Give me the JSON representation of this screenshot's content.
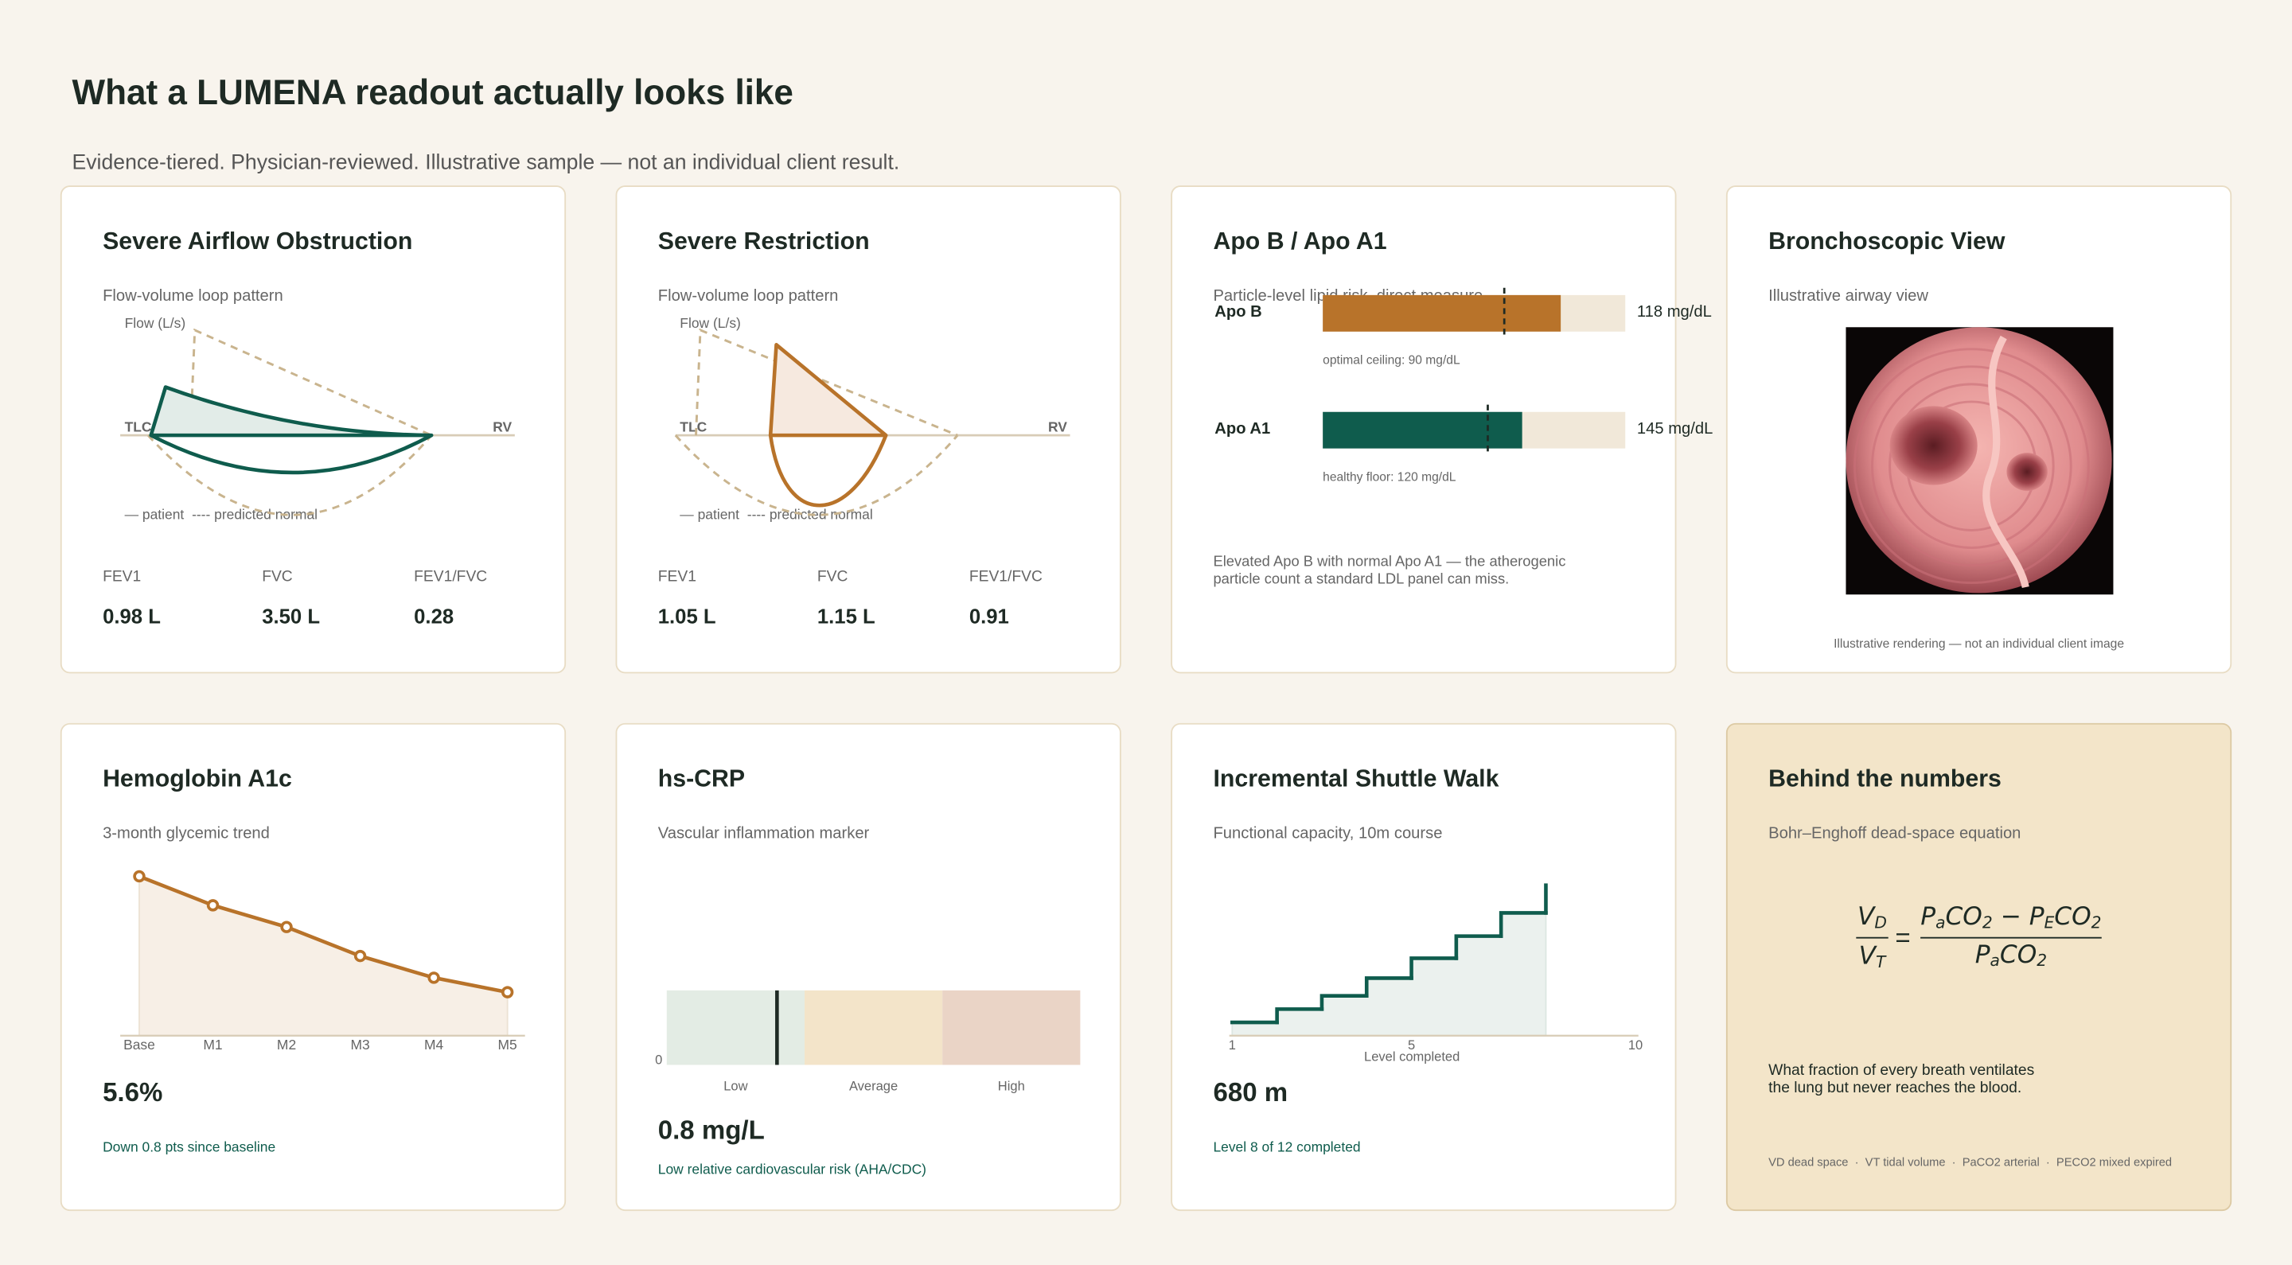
{
  "header": {
    "title": "What a LUMENA readout actually looks like",
    "subtitle": "Evidence-tiered. Physician-reviewed. Illustrative sample — not an individual client result."
  },
  "cards": [
    {
      "title": "Severe Airflow Obstruction",
      "subtitle": "Flow-volume loop pattern",
      "chart": {
        "type": "flow-volume-loop",
        "y_label": "Flow (L/s)",
        "left_label": "TLC",
        "right_label": "RV",
        "legend": [
          "— patient",
          "---- predicted normal"
        ]
      },
      "metrics": [
        {
          "label": "FEV1",
          "value": "0.98 L"
        },
        {
          "label": "FVC",
          "value": "3.50 L"
        },
        {
          "label": "FEV1/FVC",
          "value": "0.28"
        }
      ]
    },
    {
      "title": "Severe Restriction",
      "subtitle": "Flow-volume loop pattern",
      "chart": {
        "type": "flow-volume-loop",
        "y_label": "Flow (L/s)",
        "left_label": "TLC",
        "right_label": "RV",
        "legend": [
          "— patient",
          "---- predicted normal"
        ]
      },
      "metrics": [
        {
          "label": "FEV1",
          "value": "1.05 L"
        },
        {
          "label": "FVC",
          "value": "1.15 L"
        },
        {
          "label": "FEV1/FVC",
          "value": "0.91"
        }
      ]
    },
    {
      "title": "Apo B / Apo A1",
      "subtitle": "Particle-level lipid risk, direct measure",
      "chart": {
        "type": "bullet",
        "series": [
          {
            "name": "Apo B",
            "value": 118,
            "value_label": "118 mg/dL",
            "xlim": [
              0,
              150
            ],
            "ref": 90,
            "ref_label": "optimal ceiling: 90 mg/dL",
            "color": "#b8732a"
          },
          {
            "name": "Apo A1",
            "value": 145,
            "value_label": "145 mg/dL",
            "xlim": [
              0,
              220
            ],
            "ref": 120,
            "ref_label": "healthy floor: 120 mg/dL",
            "color": "#0f5c4d"
          }
        ]
      },
      "note": [
        "Elevated Apo B with normal Apo A1 — the atherogenic",
        "particle count a standard LDL panel can miss."
      ]
    },
    {
      "title": "Bronchoscopic View",
      "subtitle": "Illustrative airway view",
      "caption": "Illustrative rendering — not an individual client image"
    },
    {
      "title": "Hemoglobin A1c",
      "subtitle": "3-month glycemic trend",
      "chart": {
        "type": "line",
        "categories": [
          "Base",
          "M1",
          "M2",
          "M3",
          "M4",
          "M5"
        ],
        "values": [
          6.4,
          6.2,
          6.05,
          5.85,
          5.7,
          5.6
        ],
        "ylim": [
          5.3,
          6.5
        ],
        "color": "#b8732a"
      },
      "headline": "5.6%",
      "note": "Down 0.8 pts since baseline"
    },
    {
      "title": "hs-CRP",
      "subtitle": "Vascular inflammation marker",
      "chart": {
        "type": "band-scale",
        "xlim": [
          0,
          3
        ],
        "xticks": [
          0
        ],
        "value": 0.8,
        "bands": [
          {
            "label": "Low",
            "range": [
              0,
              1
            ],
            "color": "#e3ece4"
          },
          {
            "label": "Average",
            "range": [
              1,
              2
            ],
            "color": "#f3e4c9"
          },
          {
            "label": "High",
            "range": [
              2,
              3
            ],
            "color": "#ead4c6"
          }
        ]
      },
      "headline": "0.8 mg/L",
      "note": "Low relative cardiovascular risk (AHA/CDC)"
    },
    {
      "title": "Incremental Shuttle Walk",
      "subtitle": "Functional capacity, 10m course",
      "chart": {
        "type": "step",
        "x": [
          1,
          2,
          3,
          4,
          5,
          6,
          7,
          8
        ],
        "values": [
          60,
          120,
          180,
          260,
          350,
          450,
          555,
          680
        ],
        "xlim": [
          1,
          10
        ],
        "ylim": [
          0,
          700
        ],
        "xticks": [
          1,
          5,
          10
        ],
        "x_label": "Level completed",
        "color": "#0f5c4d"
      },
      "headline": "680 m",
      "note": "Level 8 of 12 completed"
    },
    {
      "title": "Behind the numbers",
      "subtitle": "Bohr–Enghoff dead-space equation",
      "equation": {
        "lhs_num": [
          [
            "V",
            "D"
          ]
        ],
        "lhs_den": [
          [
            "V",
            "T"
          ]
        ],
        "equals": "=",
        "rhs_num": [
          [
            "P",
            "a"
          ],
          [
            "CO",
            "2"
          ],
          [
            " − P",
            "E"
          ],
          [
            "CO",
            "2"
          ]
        ],
        "rhs_den": [
          [
            "P",
            "a"
          ],
          [
            "CO",
            "2"
          ]
        ]
      },
      "note": [
        "What fraction of every breath ventilates",
        "the lung but never reaches the blood."
      ],
      "footer": "VD dead space  ·  VT tidal volume  ·  PaCO2 arterial  ·  PECO2 mixed expired"
    }
  ]
}
